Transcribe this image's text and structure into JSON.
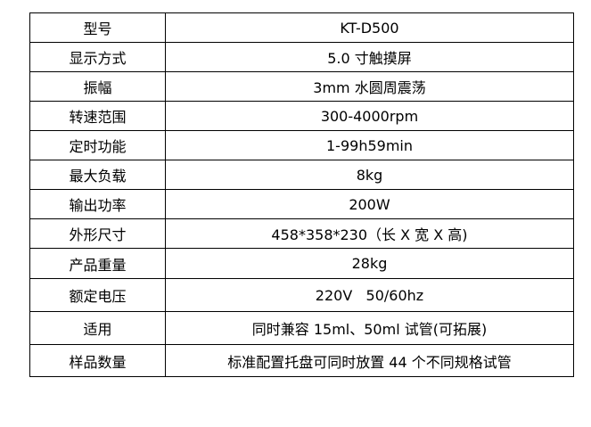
{
  "table": {
    "rows": [
      [
        "型号",
        "KT-D500"
      ],
      [
        "显示方式",
        "5.0 寸触摸屏"
      ],
      [
        "振幅",
        "3mm 水圆周震荡"
      ],
      [
        "转速范围",
        "300-4000rpm"
      ],
      [
        "定时功能",
        "1-99h59min"
      ],
      [
        "最大负载",
        "8kg"
      ],
      [
        "输出功率",
        "200W"
      ],
      [
        "外形尺寸",
        "458*358*230（长 X 宽 X 高)"
      ],
      [
        "产品重量",
        "28kg"
      ],
      [
        "额定电压",
        "220V   50/60hz"
      ],
      [
        "适用",
        "同时兼容 15ml、50ml 试管(可拓展)"
      ],
      [
        "样品数量",
        "标准配置托盘可同时放置 44 个不同规格试管"
      ]
    ]
  }
}
